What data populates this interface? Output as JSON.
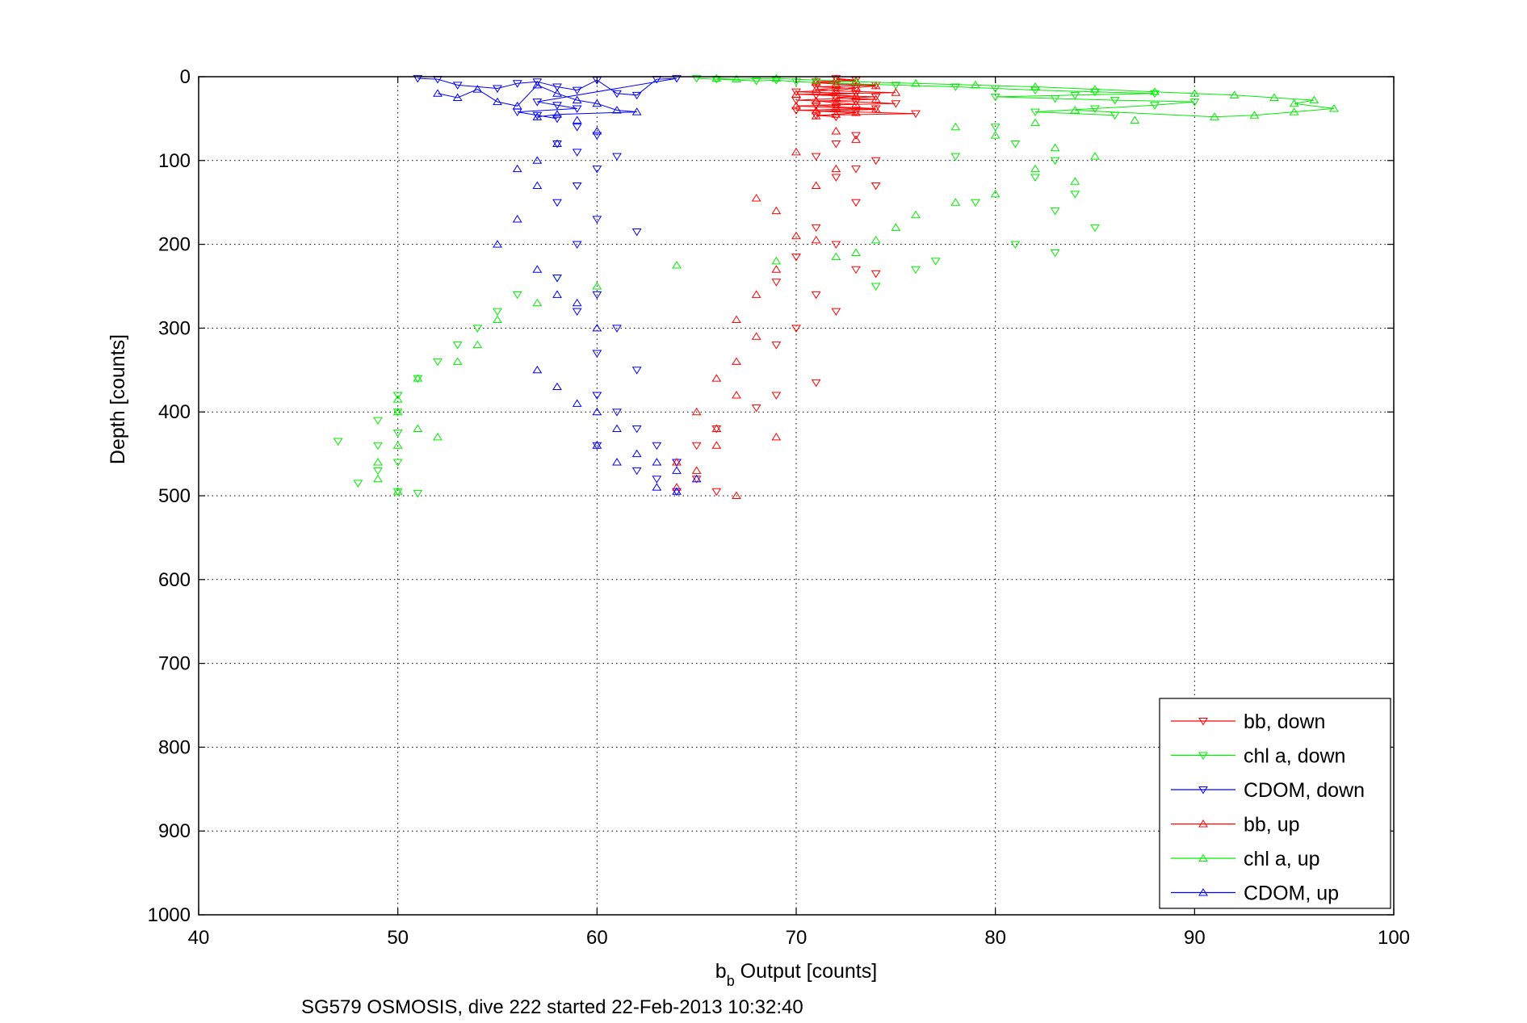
{
  "chart_data": {
    "type": "scatter",
    "title": "",
    "caption": "SG579 OSMOSIS, dive 222 started 22-Feb-2013 10:32:40",
    "xlabel_main": "b",
    "xlabel_sub": "b",
    "xlabel_rest": " Output [counts]",
    "ylabel": "Depth [counts]",
    "xlim": [
      40,
      100
    ],
    "ylim": [
      0,
      1000
    ],
    "y_reversed": true,
    "grid": true,
    "legend_position": "bottom-right",
    "xticks": [
      "40",
      "50",
      "60",
      "70",
      "80",
      "90",
      "100"
    ],
    "yticks": [
      "0",
      "100",
      "200",
      "300",
      "400",
      "500",
      "600",
      "700",
      "800",
      "900",
      "1000"
    ],
    "series": [
      {
        "name": "bb, down",
        "color": "#ff0000",
        "marker": "triangle-down",
        "points": [
          [
            72,
            2
          ],
          [
            73,
            4
          ],
          [
            71,
            6
          ],
          [
            72,
            8
          ],
          [
            74,
            10
          ],
          [
            71,
            12
          ],
          [
            73,
            14
          ],
          [
            72,
            16
          ],
          [
            70,
            18
          ],
          [
            73,
            20
          ],
          [
            71,
            22
          ],
          [
            74,
            24
          ],
          [
            72,
            26
          ],
          [
            70,
            28
          ],
          [
            73,
            30
          ],
          [
            75,
            32
          ],
          [
            71,
            34
          ],
          [
            72,
            36
          ],
          [
            74,
            38
          ],
          [
            70,
            40
          ],
          [
            73,
            42
          ],
          [
            76,
            44
          ],
          [
            71,
            46
          ],
          [
            72,
            48
          ],
          [
            73,
            70
          ],
          [
            72,
            80
          ],
          [
            71,
            95
          ],
          [
            74,
            100
          ],
          [
            73,
            110
          ],
          [
            72,
            120
          ],
          [
            74,
            130
          ],
          [
            73,
            150
          ],
          [
            71,
            180
          ],
          [
            72,
            200
          ],
          [
            70,
            215
          ],
          [
            73,
            230
          ],
          [
            74,
            235
          ],
          [
            69,
            245
          ],
          [
            71,
            260
          ],
          [
            72,
            280
          ],
          [
            70,
            300
          ],
          [
            69,
            320
          ],
          [
            71,
            365
          ],
          [
            69,
            380
          ],
          [
            68,
            395
          ],
          [
            66,
            420
          ],
          [
            65,
            440
          ],
          [
            64,
            460
          ],
          [
            65,
            480
          ],
          [
            66,
            495
          ]
        ]
      },
      {
        "name": "chl a, down",
        "color": "#00ee00",
        "marker": "triangle-down",
        "points": [
          [
            65,
            2
          ],
          [
            66,
            3
          ],
          [
            68,
            5
          ],
          [
            69,
            4
          ],
          [
            70,
            6
          ],
          [
            72,
            8
          ],
          [
            75,
            10
          ],
          [
            78,
            12
          ],
          [
            80,
            14
          ],
          [
            82,
            16
          ],
          [
            85,
            18
          ],
          [
            88,
            20
          ],
          [
            84,
            22
          ],
          [
            80,
            24
          ],
          [
            83,
            26
          ],
          [
            86,
            28
          ],
          [
            90,
            30
          ],
          [
            88,
            34
          ],
          [
            85,
            38
          ],
          [
            82,
            42
          ],
          [
            86,
            46
          ],
          [
            80,
            60
          ],
          [
            81,
            80
          ],
          [
            83,
            100
          ],
          [
            82,
            120
          ],
          [
            84,
            140
          ],
          [
            83,
            160
          ],
          [
            85,
            180
          ],
          [
            81,
            200
          ],
          [
            83,
            210
          ],
          [
            79,
            150
          ],
          [
            78,
            95
          ],
          [
            77,
            220
          ],
          [
            76,
            230
          ],
          [
            74,
            250
          ],
          [
            58,
            240
          ],
          [
            56,
            260
          ],
          [
            55,
            280
          ],
          [
            54,
            300
          ],
          [
            53,
            320
          ],
          [
            52,
            340
          ],
          [
            51,
            360
          ],
          [
            50,
            380
          ],
          [
            50,
            400
          ],
          [
            49,
            410
          ],
          [
            50,
            425
          ],
          [
            49,
            440
          ],
          [
            50,
            460
          ],
          [
            49,
            470
          ],
          [
            48,
            485
          ],
          [
            50,
            495
          ],
          [
            47,
            435
          ],
          [
            51,
            497
          ]
        ]
      },
      {
        "name": "CDOM, down",
        "color": "#0000ff",
        "marker": "triangle-down",
        "points": [
          [
            51,
            2
          ],
          [
            52,
            3
          ],
          [
            53,
            10
          ],
          [
            55,
            14
          ],
          [
            56,
            8
          ],
          [
            57,
            6
          ],
          [
            58,
            12
          ],
          [
            59,
            16
          ],
          [
            60,
            4
          ],
          [
            61,
            20
          ],
          [
            62,
            22
          ],
          [
            63,
            3
          ],
          [
            64,
            2
          ],
          [
            57,
            30
          ],
          [
            58,
            34
          ],
          [
            59,
            38
          ],
          [
            56,
            42
          ],
          [
            57,
            46
          ],
          [
            58,
            50
          ],
          [
            59,
            60
          ],
          [
            60,
            70
          ],
          [
            58,
            80
          ],
          [
            59,
            90
          ],
          [
            61,
            95
          ],
          [
            60,
            110
          ],
          [
            59,
            130
          ],
          [
            58,
            150
          ],
          [
            60,
            170
          ],
          [
            59,
            200
          ],
          [
            62,
            185
          ],
          [
            58,
            240
          ],
          [
            60,
            260
          ],
          [
            59,
            280
          ],
          [
            61,
            300
          ],
          [
            60,
            330
          ],
          [
            62,
            350
          ],
          [
            60,
            380
          ],
          [
            61,
            400
          ],
          [
            62,
            420
          ],
          [
            63,
            440
          ],
          [
            60,
            440
          ],
          [
            64,
            460
          ],
          [
            63,
            480
          ],
          [
            64,
            495
          ],
          [
            62,
            470
          ]
        ]
      },
      {
        "name": "bb, up",
        "color": "#ff0000",
        "marker": "triangle-up",
        "points": [
          [
            72,
            3
          ],
          [
            73,
            5
          ],
          [
            71,
            7
          ],
          [
            72,
            9
          ],
          [
            74,
            11
          ],
          [
            73,
            13
          ],
          [
            71,
            15
          ],
          [
            72,
            17
          ],
          [
            75,
            19
          ],
          [
            70,
            21
          ],
          [
            73,
            23
          ],
          [
            72,
            25
          ],
          [
            74,
            27
          ],
          [
            71,
            29
          ],
          [
            72,
            31
          ],
          [
            73,
            33
          ],
          [
            70,
            35
          ],
          [
            72,
            37
          ],
          [
            74,
            39
          ],
          [
            71,
            41
          ],
          [
            73,
            43
          ],
          [
            72,
            45
          ],
          [
            71,
            47
          ],
          [
            72,
            65
          ],
          [
            73,
            75
          ],
          [
            70,
            90
          ],
          [
            72,
            110
          ],
          [
            71,
            130
          ],
          [
            68,
            145
          ],
          [
            69,
            160
          ],
          [
            70,
            190
          ],
          [
            71,
            195
          ],
          [
            69,
            230
          ],
          [
            68,
            260
          ],
          [
            67,
            290
          ],
          [
            68,
            310
          ],
          [
            67,
            340
          ],
          [
            66,
            360
          ],
          [
            67,
            380
          ],
          [
            65,
            400
          ],
          [
            66,
            420
          ],
          [
            66,
            440
          ],
          [
            64,
            460
          ],
          [
            65,
            470
          ],
          [
            67,
            500
          ],
          [
            64,
            490
          ],
          [
            69,
            430
          ]
        ]
      },
      {
        "name": "chl a, up",
        "color": "#00ee00",
        "marker": "triangle-up",
        "points": [
          [
            66,
            2
          ],
          [
            67,
            3
          ],
          [
            69,
            2
          ],
          [
            71,
            4
          ],
          [
            73,
            6
          ],
          [
            76,
            8
          ],
          [
            79,
            10
          ],
          [
            82,
            12
          ],
          [
            85,
            15
          ],
          [
            88,
            18
          ],
          [
            90,
            20
          ],
          [
            92,
            22
          ],
          [
            94,
            25
          ],
          [
            96,
            28
          ],
          [
            95,
            32
          ],
          [
            97,
            38
          ],
          [
            95,
            42
          ],
          [
            93,
            46
          ],
          [
            91,
            48
          ],
          [
            87,
            52
          ],
          [
            84,
            40
          ],
          [
            82,
            55
          ],
          [
            78,
            60
          ],
          [
            80,
            70
          ],
          [
            83,
            85
          ],
          [
            85,
            95
          ],
          [
            82,
            110
          ],
          [
            84,
            125
          ],
          [
            80,
            140
          ],
          [
            78,
            150
          ],
          [
            76,
            165
          ],
          [
            75,
            180
          ],
          [
            74,
            195
          ],
          [
            73,
            210
          ],
          [
            72,
            215
          ],
          [
            69,
            220
          ],
          [
            64,
            225
          ],
          [
            60,
            250
          ],
          [
            57,
            270
          ],
          [
            55,
            290
          ],
          [
            54,
            320
          ],
          [
            53,
            340
          ],
          [
            51,
            360
          ],
          [
            50,
            385
          ],
          [
            50,
            400
          ],
          [
            51,
            420
          ],
          [
            50,
            440
          ],
          [
            49,
            460
          ],
          [
            49,
            480
          ],
          [
            50,
            495
          ],
          [
            52,
            430
          ]
        ]
      },
      {
        "name": "CDOM, up",
        "color": "#0000ff",
        "marker": "triangle-up",
        "points": [
          [
            52,
            20
          ],
          [
            53,
            25
          ],
          [
            54,
            15
          ],
          [
            55,
            30
          ],
          [
            56,
            35
          ],
          [
            57,
            10
          ],
          [
            58,
            20
          ],
          [
            59,
            28
          ],
          [
            60,
            32
          ],
          [
            61,
            40
          ],
          [
            62,
            42
          ],
          [
            58,
            45
          ],
          [
            57,
            48
          ],
          [
            59,
            52
          ],
          [
            60,
            65
          ],
          [
            58,
            80
          ],
          [
            57,
            100
          ],
          [
            56,
            110
          ],
          [
            57,
            130
          ],
          [
            56,
            170
          ],
          [
            55,
            200
          ],
          [
            57,
            230
          ],
          [
            58,
            260
          ],
          [
            59,
            270
          ],
          [
            60,
            300
          ],
          [
            57,
            350
          ],
          [
            58,
            370
          ],
          [
            59,
            390
          ],
          [
            60,
            400
          ],
          [
            61,
            420
          ],
          [
            60,
            440
          ],
          [
            62,
            450
          ],
          [
            63,
            460
          ],
          [
            64,
            470
          ],
          [
            61,
            460
          ],
          [
            65,
            480
          ],
          [
            64,
            495
          ],
          [
            63,
            490
          ]
        ]
      }
    ]
  }
}
